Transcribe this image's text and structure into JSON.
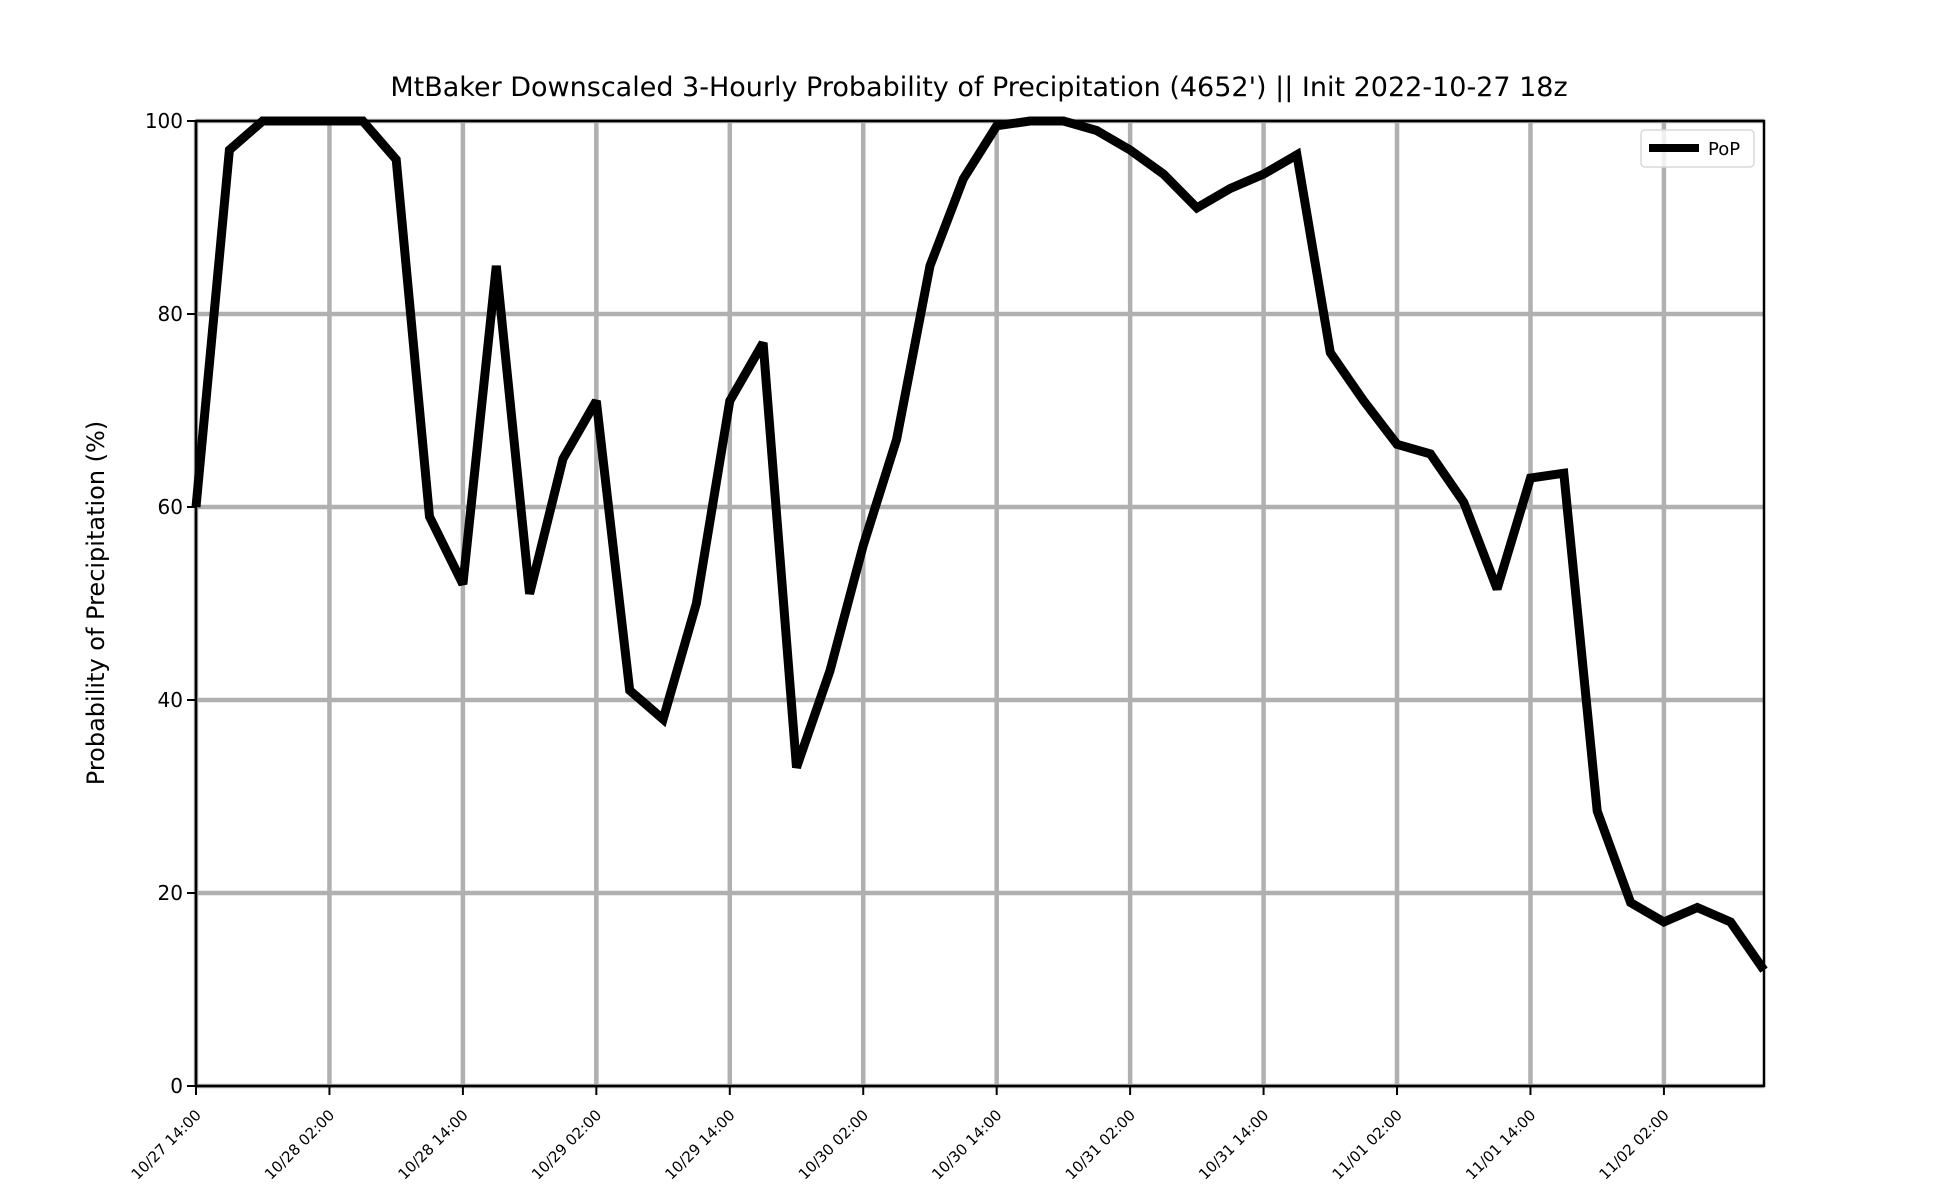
{
  "chart_data": {
    "type": "line",
    "title": "MtBaker Downscaled 3-Hourly Probability of Precipitation (4652') || Init 2022-10-27 18z",
    "xlabel": "",
    "ylabel": "Probability of Precipitation (%)",
    "ylim": [
      0,
      100
    ],
    "yticks": [
      0,
      20,
      40,
      60,
      80,
      100
    ],
    "ytick_labels": [
      "0",
      "20",
      "40",
      "60",
      "80",
      "100"
    ],
    "xlim": [
      "10/27 14:00",
      "11/02 11:00"
    ],
    "xtick_labels": [
      "10/27 14:00",
      "10/28 02:00",
      "10/28 14:00",
      "10/29 02:00",
      "10/29 14:00",
      "10/30 02:00",
      "10/30 14:00",
      "10/31 02:00",
      "10/31 14:00",
      "11/01 02:00",
      "11/01 14:00",
      "11/02 02:00"
    ],
    "x": [
      "10/27 14:00",
      "10/27 17:00",
      "10/27 20:00",
      "10/27 23:00",
      "10/28 02:00",
      "10/28 05:00",
      "10/28 08:00",
      "10/28 11:00",
      "10/28 14:00",
      "10/28 17:00",
      "10/28 20:00",
      "10/28 23:00",
      "10/29 02:00",
      "10/29 05:00",
      "10/29 08:00",
      "10/29 11:00",
      "10/29 14:00",
      "10/29 17:00",
      "10/29 20:00",
      "10/29 23:00",
      "10/30 02:00",
      "10/30 05:00",
      "10/30 08:00",
      "10/30 11:00",
      "10/30 14:00",
      "10/30 17:00",
      "10/30 20:00",
      "10/30 23:00",
      "10/31 02:00",
      "10/31 05:00",
      "10/31 08:00",
      "10/31 11:00",
      "10/31 14:00",
      "10/31 17:00",
      "10/31 20:00",
      "10/31 23:00",
      "11/01 02:00",
      "11/01 05:00",
      "11/01 08:00",
      "11/01 11:00",
      "11/01 14:00",
      "11/01 17:00",
      "11/01 20:00",
      "11/01 23:00",
      "11/02 02:00",
      "11/02 05:00",
      "11/02 08:00",
      "11/02 11:00"
    ],
    "series": [
      {
        "name": "PoP",
        "color": "#000000",
        "values": [
          60,
          97,
          100,
          100,
          100,
          100,
          96,
          59,
          52,
          85,
          51,
          65,
          71,
          41,
          38,
          50,
          71,
          77,
          33,
          43,
          56,
          67,
          85,
          94,
          99.5,
          100,
          100,
          99,
          97,
          94.5,
          91,
          93,
          94.5,
          96.5,
          76,
          71,
          66.5,
          65.5,
          60.5,
          51.5,
          63,
          63.5,
          28.5,
          19,
          17,
          18.5,
          17,
          12
        ]
      }
    ],
    "grid": true,
    "grid_color": "#b0b0b0",
    "legend": {
      "position": "top-right",
      "entries": [
        "PoP"
      ]
    }
  }
}
